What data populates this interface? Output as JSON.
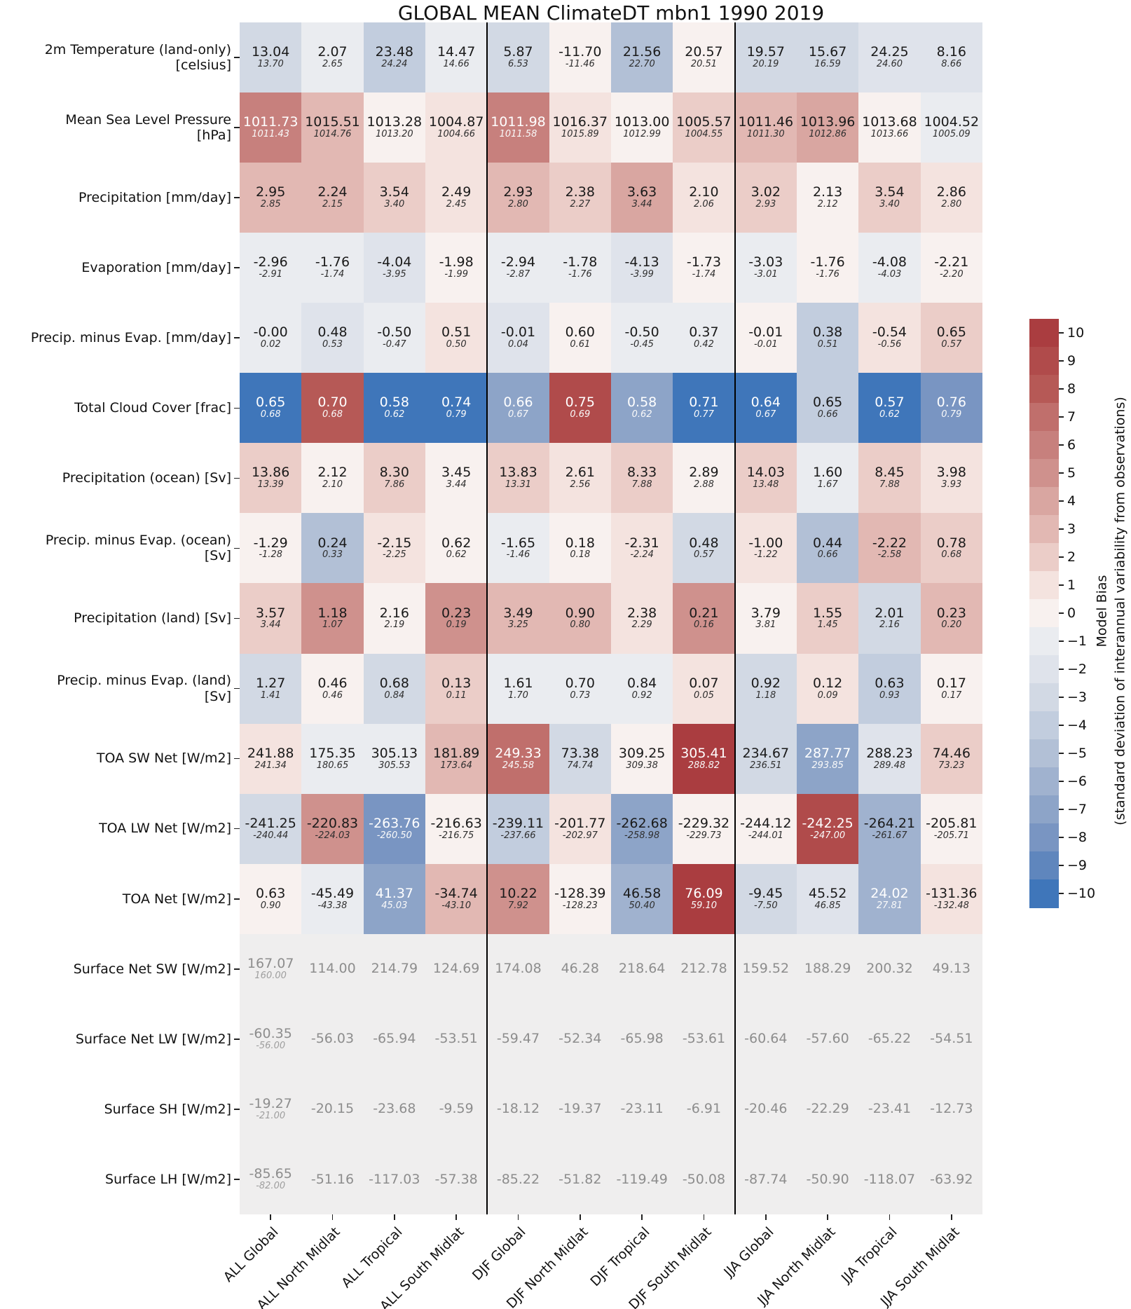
{
  "title": "GLOBAL MEAN ClimateDT mbn1 1990 2019",
  "chart_data": {
    "type": "heatmap",
    "title": "GLOBAL MEAN ClimateDT mbn1 1990 2019",
    "annotation_style": "main value = model mean, small italic value = observed mean",
    "columns": [
      "ALL Global",
      "ALL North Midlat",
      "ALL Tropical",
      "ALL South Midlat",
      "DJF Global",
      "DJF North Midlat",
      "DJF Tropical",
      "DJF South Midlat",
      "JJA Global",
      "JJA North Midlat",
      "JJA Tropical",
      "JJA South Midlat"
    ],
    "column_groups": [
      "ALL",
      "DJF",
      "JJA"
    ],
    "rows": [
      {
        "label": [
          "2m Temperature (land-only)",
          "[celsius]"
        ],
        "values": [
          "13.04",
          "2.07",
          "23.48",
          "14.47",
          "5.87",
          "-11.70",
          "21.56",
          "20.57",
          "19.57",
          "15.67",
          "24.25",
          "8.16"
        ],
        "obs": [
          "13.70",
          "2.65",
          "24.24",
          "14.66",
          "6.53",
          "-11.46",
          "22.70",
          "20.51",
          "20.19",
          "16.59",
          "24.60",
          "8.66"
        ],
        "bias": [
          -3,
          -1,
          -4,
          -1,
          -3,
          0,
          -5,
          0,
          -3,
          -3,
          -2,
          -2
        ],
        "wt": []
      },
      {
        "label": [
          "Mean Sea Level Pressure",
          "[hPa]"
        ],
        "values": [
          "1011.73",
          "1015.51",
          "1013.28",
          "1004.87",
          "1011.98",
          "1016.37",
          "1013.00",
          "1005.57",
          "1011.46",
          "1013.96",
          "1013.68",
          "1004.52"
        ],
        "obs": [
          "1011.43",
          "1014.76",
          "1013.20",
          "1004.66",
          "1011.58",
          "1015.89",
          "1012.99",
          "1004.55",
          "1011.30",
          "1012.86",
          "1013.66",
          "1005.09"
        ],
        "bias": [
          6,
          3,
          0,
          1,
          6,
          1,
          0,
          2,
          3,
          4,
          0,
          -1
        ],
        "wt": [
          0,
          4
        ]
      },
      {
        "label": [
          "Precipitation [mm/day]"
        ],
        "values": [
          "2.95",
          "2.24",
          "3.54",
          "2.49",
          "2.93",
          "2.38",
          "3.63",
          "2.10",
          "3.02",
          "2.13",
          "3.54",
          "2.86"
        ],
        "obs": [
          "2.85",
          "2.15",
          "3.40",
          "2.45",
          "2.80",
          "2.27",
          "3.44",
          "2.06",
          "2.93",
          "2.12",
          "3.40",
          "2.80"
        ],
        "bias": [
          3,
          3,
          2,
          1,
          3,
          2,
          4,
          1,
          2,
          0,
          2,
          1
        ],
        "wt": []
      },
      {
        "label": [
          "Evaporation [mm/day]"
        ],
        "values": [
          "-2.96",
          "-1.76",
          "-4.04",
          "-1.98",
          "-2.94",
          "-1.78",
          "-4.13",
          "-1.73",
          "-3.03",
          "-1.76",
          "-4.08",
          "-2.21"
        ],
        "obs": [
          "-2.91",
          "-1.74",
          "-3.95",
          "-1.99",
          "-2.87",
          "-1.76",
          "-3.99",
          "-1.74",
          "-3.01",
          "-1.76",
          "-4.03",
          "-2.20"
        ],
        "bias": [
          -1,
          -1,
          -2,
          0,
          -1,
          -1,
          -2,
          0,
          -1,
          0,
          -1,
          0
        ],
        "wt": []
      },
      {
        "label": [
          "Precip. minus Evap. [mm/day]"
        ],
        "values": [
          "-0.00",
          "0.48",
          "-0.50",
          "0.51",
          "-0.01",
          "0.60",
          "-0.50",
          "0.37",
          "-0.01",
          "0.38",
          "-0.54",
          "0.65"
        ],
        "obs": [
          "0.02",
          "0.53",
          "-0.47",
          "0.50",
          "0.04",
          "0.61",
          "-0.45",
          "0.42",
          "-0.01",
          "0.51",
          "-0.56",
          "0.57"
        ],
        "bias": [
          -1,
          -2,
          -1,
          1,
          -2,
          0,
          -1,
          -1,
          0,
          -4,
          1,
          2
        ],
        "wt": []
      },
      {
        "label": [
          "Total Cloud Cover [frac]"
        ],
        "values": [
          "0.65",
          "0.70",
          "0.58",
          "0.74",
          "0.66",
          "0.75",
          "0.58",
          "0.71",
          "0.64",
          "0.65",
          "0.57",
          "0.76"
        ],
        "obs": [
          "0.68",
          "0.68",
          "0.62",
          "0.79",
          "0.67",
          "0.69",
          "0.62",
          "0.77",
          "0.67",
          "0.66",
          "0.62",
          "0.79"
        ],
        "bias": [
          -10,
          8,
          -10,
          -10,
          -7,
          9,
          -7,
          -10,
          -10,
          -4,
          -10,
          -8
        ],
        "wt": [
          0,
          1,
          2,
          3,
          4,
          5,
          6,
          7,
          8,
          10,
          11
        ]
      },
      {
        "label": [
          "Precipitation (ocean) [Sv]"
        ],
        "values": [
          "13.86",
          "2.12",
          "8.30",
          "3.45",
          "13.83",
          "2.61",
          "8.33",
          "2.89",
          "14.03",
          "1.60",
          "8.45",
          "3.98"
        ],
        "obs": [
          "13.39",
          "2.10",
          "7.86",
          "3.44",
          "13.31",
          "2.56",
          "7.88",
          "2.88",
          "13.48",
          "1.67",
          "7.88",
          "3.93"
        ],
        "bias": [
          2,
          0,
          2,
          0,
          2,
          1,
          2,
          0,
          2,
          -1,
          2,
          1
        ],
        "wt": []
      },
      {
        "label": [
          "Precip. minus Evap. (ocean)",
          "[Sv]"
        ],
        "values": [
          "-1.29",
          "0.24",
          "-2.15",
          "0.62",
          "-1.65",
          "0.18",
          "-2.31",
          "0.48",
          "-1.00",
          "0.44",
          "-2.22",
          "0.78"
        ],
        "obs": [
          "-1.28",
          "0.33",
          "-2.25",
          "0.62",
          "-1.46",
          "0.18",
          "-2.24",
          "0.57",
          "-1.22",
          "0.66",
          "-2.58",
          "0.68"
        ],
        "bias": [
          0,
          -5,
          1,
          0,
          -1,
          0,
          1,
          -3,
          1,
          -5,
          3,
          2
        ],
        "wt": []
      },
      {
        "label": [
          "Precipitation (land) [Sv]"
        ],
        "values": [
          "3.57",
          "1.18",
          "2.16",
          "0.23",
          "3.49",
          "0.90",
          "2.38",
          "0.21",
          "3.79",
          "1.55",
          "2.01",
          "0.23"
        ],
        "obs": [
          "3.44",
          "1.07",
          "2.19",
          "0.19",
          "3.25",
          "0.80",
          "2.29",
          "0.16",
          "3.81",
          "1.45",
          "2.16",
          "0.20"
        ],
        "bias": [
          2,
          5,
          0,
          5,
          3,
          3,
          1,
          5,
          0,
          2,
          -3,
          3
        ],
        "wt": []
      },
      {
        "label": [
          "Precip. minus Evap. (land)",
          "[Sv]"
        ],
        "values": [
          "1.27",
          "0.46",
          "0.68",
          "0.13",
          "1.61",
          "0.70",
          "0.84",
          "0.07",
          "0.92",
          "0.12",
          "0.63",
          "0.17"
        ],
        "obs": [
          "1.41",
          "0.46",
          "0.84",
          "0.11",
          "1.70",
          "0.73",
          "0.92",
          "0.05",
          "1.18",
          "0.09",
          "0.93",
          "0.17"
        ],
        "bias": [
          -3,
          0,
          -3,
          2,
          -1,
          -1,
          -1,
          1,
          -3,
          1,
          -4,
          0
        ],
        "wt": []
      },
      {
        "label": [
          "TOA SW Net [W/m2]"
        ],
        "values": [
          "241.88",
          "175.35",
          "305.13",
          "181.89",
          "249.33",
          "73.38",
          "309.25",
          "305.41",
          "234.67",
          "287.77",
          "288.23",
          "74.46"
        ],
        "obs": [
          "241.34",
          "180.65",
          "305.53",
          "173.64",
          "245.58",
          "74.74",
          "309.38",
          "288.82",
          "236.51",
          "293.85",
          "289.48",
          "73.23"
        ],
        "bias": [
          1,
          -1,
          -1,
          3,
          7,
          -3,
          0,
          10,
          -3,
          -7,
          -2,
          2
        ],
        "wt": [
          4,
          7,
          9
        ]
      },
      {
        "label": [
          "TOA LW Net [W/m2]"
        ],
        "values": [
          "-241.25",
          "-220.83",
          "-263.76",
          "-216.63",
          "-239.11",
          "-201.77",
          "-262.68",
          "-229.32",
          "-244.12",
          "-242.25",
          "-264.21",
          "-205.81"
        ],
        "obs": [
          "-240.44",
          "-224.03",
          "-260.50",
          "-216.75",
          "-237.66",
          "-202.97",
          "-258.98",
          "-229.73",
          "-244.01",
          "-247.00",
          "-261.67",
          "-205.71"
        ],
        "bias": [
          -3,
          5,
          -8,
          0,
          -4,
          1,
          -7,
          0,
          0,
          9,
          -6,
          0
        ],
        "wt": [
          2,
          9
        ]
      },
      {
        "label": [
          "TOA Net [W/m2]"
        ],
        "values": [
          "0.63",
          "-45.49",
          "41.37",
          "-34.74",
          "10.22",
          "-128.39",
          "46.58",
          "76.09",
          "-9.45",
          "45.52",
          "24.02",
          "-131.36"
        ],
        "obs": [
          "0.90",
          "-43.38",
          "45.03",
          "-43.10",
          "7.92",
          "-128.23",
          "50.40",
          "59.10",
          "-7.50",
          "46.85",
          "27.81",
          "-132.48"
        ],
        "bias": [
          0,
          -1,
          -7,
          3,
          5,
          0,
          -6,
          10,
          -3,
          -2,
          -6,
          1
        ],
        "wt": [
          2,
          7,
          10
        ]
      },
      {
        "label": [
          "Surface Net SW [W/m2]"
        ],
        "values": [
          "167.07",
          "114.00",
          "214.79",
          "124.69",
          "174.08",
          "46.28",
          "218.64",
          "212.78",
          "159.52",
          "188.29",
          "200.32",
          "49.13"
        ],
        "obs": [
          "160.00",
          null,
          null,
          null,
          null,
          null,
          null,
          null,
          null,
          null,
          null,
          null
        ],
        "bias": null,
        "wt": []
      },
      {
        "label": [
          "Surface Net LW [W/m2]"
        ],
        "values": [
          "-60.35",
          "-56.03",
          "-65.94",
          "-53.51",
          "-59.47",
          "-52.34",
          "-65.98",
          "-53.61",
          "-60.64",
          "-57.60",
          "-65.22",
          "-54.51"
        ],
        "obs": [
          "-56.00",
          null,
          null,
          null,
          null,
          null,
          null,
          null,
          null,
          null,
          null,
          null
        ],
        "bias": null,
        "wt": []
      },
      {
        "label": [
          "Surface SH [W/m2]"
        ],
        "values": [
          "-19.27",
          "-20.15",
          "-23.68",
          "-9.59",
          "-18.12",
          "-19.37",
          "-23.11",
          "-6.91",
          "-20.46",
          "-22.29",
          "-23.41",
          "-12.73"
        ],
        "obs": [
          "-21.00",
          null,
          null,
          null,
          null,
          null,
          null,
          null,
          null,
          null,
          null,
          null
        ],
        "bias": null,
        "wt": []
      },
      {
        "label": [
          "Surface LH [W/m2]"
        ],
        "values": [
          "-85.65",
          "-51.16",
          "-117.03",
          "-57.38",
          "-85.22",
          "-51.82",
          "-119.49",
          "-50.08",
          "-87.74",
          "-50.90",
          "-118.07",
          "-63.92"
        ],
        "obs": [
          "-82.00",
          null,
          null,
          null,
          null,
          null,
          null,
          null,
          null,
          null,
          null,
          null
        ],
        "bias": null,
        "wt": []
      }
    ],
    "colorbar": {
      "label_line1": "Model Bias",
      "label_line2": "(standard deviation of interannual variability from observations)",
      "ticks": [
        "10",
        "9",
        "8",
        "7",
        "6",
        "5",
        "4",
        "3",
        "2",
        "1",
        "0",
        "−1",
        "−2",
        "−3",
        "−4",
        "−5",
        "−6",
        "−7",
        "−8",
        "−9",
        "−10"
      ],
      "vmin": -10,
      "vmax": 10
    },
    "colors": {
      "palette_minus10_to_plus10": [
        "#3f76ba",
        "#5f86bd",
        "#7995c2",
        "#8da4c8",
        "#a0b2cf",
        "#b2c0d6",
        "#c2cdde",
        "#d2d9e4",
        "#dfe3eb",
        "#eaecf0",
        "#f8f1ef",
        "#f4e3df",
        "#ebcdc8",
        "#e2b8b3",
        "#d9a6a1",
        "#cf918d",
        "#c7807d",
        "#c06f6c",
        "#b65956",
        "#b04b4b",
        "#aa3d40"
      ],
      "na_cell": "#efeeee",
      "separator": "#000000"
    }
  }
}
